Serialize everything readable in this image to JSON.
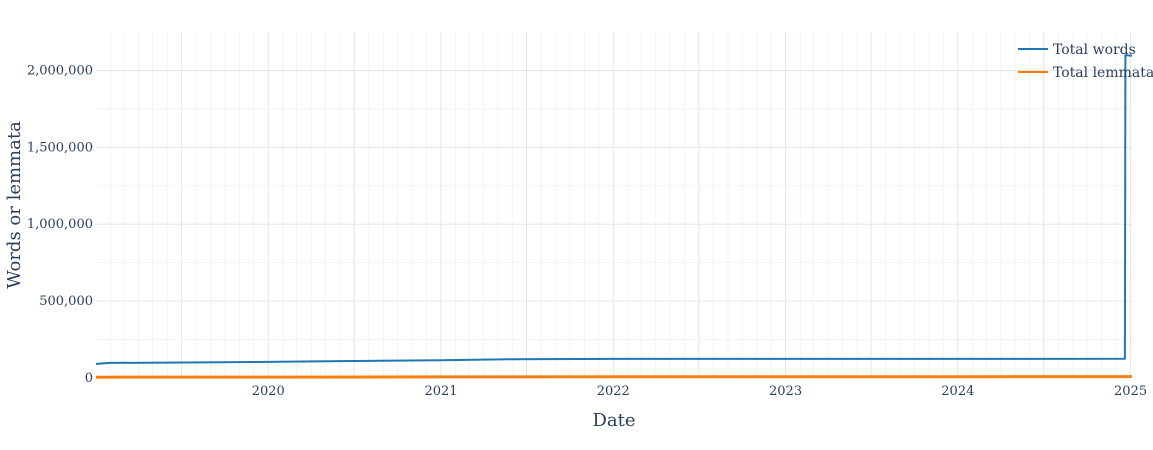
{
  "chart_data": {
    "type": "line",
    "title": "",
    "xlabel": "Date",
    "ylabel": "Words or lemmata",
    "xlim": [
      "2019-01-01",
      "2025-01-04"
    ],
    "ylim": [
      0,
      2250000
    ],
    "x_ticks": [
      {
        "date": "2020-01-01",
        "label": "2020"
      },
      {
        "date": "2021-01-01",
        "label": "2021"
      },
      {
        "date": "2022-01-01",
        "label": "2022"
      },
      {
        "date": "2023-01-01",
        "label": "2023"
      },
      {
        "date": "2024-01-01",
        "label": "2024"
      },
      {
        "date": "2025-01-01",
        "label": "2025"
      }
    ],
    "y_ticks": [
      {
        "value": 0,
        "label": "0"
      },
      {
        "value": 500000,
        "label": "500,000"
      },
      {
        "value": 1000000,
        "label": "1,000,000"
      },
      {
        "value": 1500000,
        "label": "1,500,000"
      },
      {
        "value": 2000000,
        "label": "2,000,000"
      }
    ],
    "grid": true,
    "legend_position": "top-right",
    "series": [
      {
        "name": "Total words",
        "color": "#1f77b4",
        "x": [
          "2019-01-01",
          "2019-02-01",
          "2019-06-01",
          "2020-01-01",
          "2020-06-01",
          "2021-01-01",
          "2021-06-01",
          "2022-01-01",
          "2022-06-01",
          "2023-01-01",
          "2023-06-01",
          "2024-01-01",
          "2024-06-01",
          "2024-12-20",
          "2024-12-21",
          "2025-01-04"
        ],
        "y": [
          92000,
          98000,
          100000,
          105000,
          110000,
          115000,
          122000,
          124000,
          124000,
          124000,
          124000,
          124000,
          124000,
          125000,
          2100000,
          2095000
        ]
      },
      {
        "name": "Total lemmata",
        "color": "#ff7f0e",
        "x": [
          "2019-01-01",
          "2020-01-01",
          "2021-01-01",
          "2022-01-01",
          "2023-01-01",
          "2024-01-01",
          "2025-01-04"
        ],
        "y": [
          5000,
          6000,
          7000,
          7500,
          8000,
          8500,
          9000
        ]
      }
    ]
  }
}
